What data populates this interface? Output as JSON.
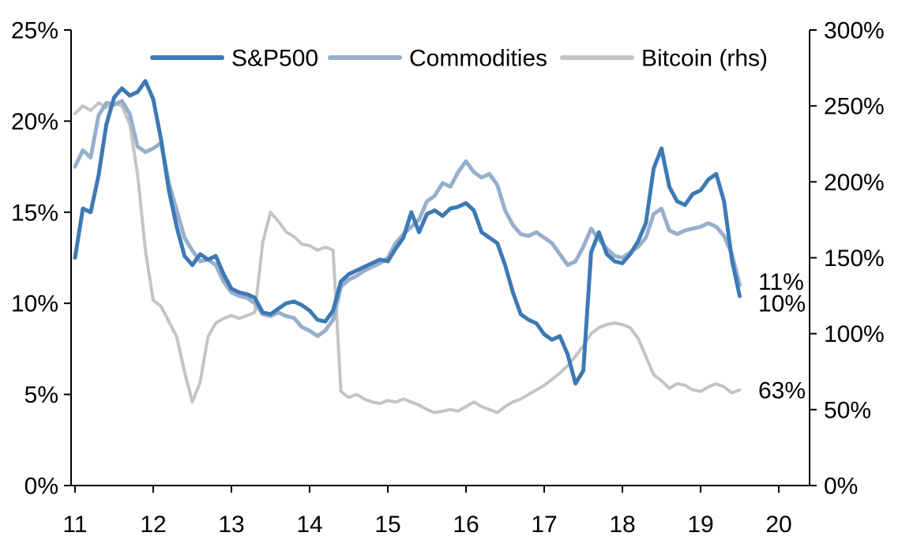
{
  "chart_data": {
    "type": "line",
    "title": "",
    "grid": false,
    "legend": {
      "position": "top-center"
    },
    "x_label": "",
    "x_ticks": [
      11,
      12,
      13,
      14,
      15,
      16,
      17,
      18,
      19,
      20
    ],
    "left_axis": {
      "range": [
        0,
        25
      ],
      "ticks": [
        0,
        5,
        10,
        15,
        20,
        25
      ],
      "tick_suffix": "%"
    },
    "right_axis": {
      "range": [
        0,
        300
      ],
      "ticks": [
        0,
        50,
        100,
        150,
        200,
        250,
        300
      ],
      "tick_suffix": "%"
    },
    "x": [
      11,
      11.1,
      11.2,
      11.3,
      11.4,
      11.5,
      11.6,
      11.7,
      11.8,
      11.9,
      12,
      12.1,
      12.2,
      12.3,
      12.4,
      12.5,
      12.6,
      12.7,
      12.8,
      12.9,
      13,
      13.1,
      13.2,
      13.3,
      13.4,
      13.5,
      13.6,
      13.7,
      13.8,
      13.9,
      14,
      14.1,
      14.2,
      14.3,
      14.4,
      14.5,
      14.6,
      14.7,
      14.8,
      14.9,
      15,
      15.1,
      15.2,
      15.3,
      15.4,
      15.5,
      15.6,
      15.7,
      15.8,
      15.9,
      16,
      16.1,
      16.2,
      16.3,
      16.4,
      16.5,
      16.6,
      16.7,
      16.8,
      16.9,
      17,
      17.1,
      17.2,
      17.3,
      17.4,
      17.5,
      17.6,
      17.7,
      17.8,
      17.9,
      18,
      18.1,
      18.2,
      18.3,
      18.4,
      18.5,
      18.6,
      18.7,
      18.8,
      18.9,
      19,
      19.1,
      19.2,
      19.3,
      19.4,
      19.5
    ],
    "series": [
      {
        "name": "S&P500",
        "axis": "left",
        "color": "#3d7ab4",
        "width": 5,
        "values": [
          12.5,
          15.2,
          15.0,
          17.0,
          19.8,
          21.3,
          21.8,
          21.4,
          21.6,
          22.2,
          21.2,
          19.0,
          16.2,
          14.2,
          12.6,
          12.1,
          12.7,
          12.4,
          12.6,
          11.6,
          10.8,
          10.6,
          10.5,
          10.3,
          9.5,
          9.4,
          9.7,
          10.0,
          10.1,
          9.9,
          9.6,
          9.1,
          9.0,
          9.6,
          11.2,
          11.6,
          11.8,
          12.0,
          12.2,
          12.4,
          12.3,
          13.0,
          13.6,
          15.0,
          13.9,
          14.9,
          15.1,
          14.8,
          15.2,
          15.3,
          15.5,
          15.1,
          13.9,
          13.6,
          13.3,
          12.1,
          10.6,
          9.4,
          9.1,
          8.9,
          8.3,
          8.0,
          8.2,
          7.2,
          5.6,
          6.3,
          12.8,
          13.9,
          12.7,
          12.3,
          12.2,
          12.7,
          13.4,
          14.4,
          17.4,
          18.5,
          16.4,
          15.6,
          15.4,
          16.0,
          16.2,
          16.8,
          17.1,
          15.6,
          12.4,
          10.4
        ]
      },
      {
        "name": "Commodities",
        "axis": "left",
        "color": "#98afcc",
        "width": 5,
        "values": [
          17.5,
          18.4,
          18.0,
          20.3,
          21.0,
          20.9,
          21.1,
          20.4,
          18.6,
          18.3,
          18.5,
          18.8,
          16.6,
          15.1,
          13.6,
          12.9,
          12.3,
          12.4,
          12.1,
          11.2,
          10.6,
          10.4,
          10.3,
          10.0,
          9.4,
          9.3,
          9.5,
          9.3,
          9.2,
          8.7,
          8.5,
          8.2,
          8.5,
          9.1,
          10.9,
          11.3,
          11.5,
          11.8,
          12.0,
          12.2,
          12.5,
          13.3,
          13.8,
          14.2,
          14.6,
          15.6,
          15.9,
          16.6,
          16.4,
          17.2,
          17.8,
          17.2,
          16.9,
          17.1,
          16.5,
          15.1,
          14.3,
          13.8,
          13.7,
          13.9,
          13.6,
          13.3,
          12.7,
          12.1,
          12.3,
          13.1,
          14.1,
          13.5,
          13.0,
          12.6,
          12.5,
          12.8,
          13.1,
          13.6,
          14.9,
          15.2,
          14.0,
          13.8,
          14.0,
          14.1,
          14.2,
          14.4,
          14.2,
          13.7,
          12.7,
          11.0
        ]
      },
      {
        "name": "Bitcoin (rhs)",
        "axis": "right",
        "color": "#c4c4c4",
        "width": 4,
        "values": [
          245,
          250,
          247,
          252,
          249,
          252,
          250,
          238,
          205,
          155,
          122,
          118,
          108,
          98,
          75,
          55,
          68,
          98,
          107,
          110,
          112,
          110,
          112,
          114,
          160,
          180,
          174,
          167,
          164,
          159,
          158,
          155,
          157,
          155,
          62,
          58,
          60,
          57,
          55,
          54,
          56,
          55,
          57,
          55,
          53,
          50,
          48,
          49,
          50,
          49,
          52,
          55,
          52,
          50,
          48,
          52,
          55,
          57,
          60,
          63,
          66,
          70,
          74,
          79,
          85,
          92,
          100,
          104,
          106,
          107,
          106,
          104,
          97,
          85,
          73,
          69,
          64,
          67,
          66,
          63,
          62,
          65,
          67,
          65,
          61,
          63
        ]
      }
    ],
    "end_labels": [
      {
        "text": "11%",
        "axis": "left",
        "value": 11.2
      },
      {
        "text": "10%",
        "axis": "left",
        "value": 10.0
      },
      {
        "text": "63%",
        "axis": "right",
        "value": 63
      }
    ]
  },
  "colors": {
    "axis": "#000000",
    "text": "#000000",
    "background": "#ffffff"
  }
}
